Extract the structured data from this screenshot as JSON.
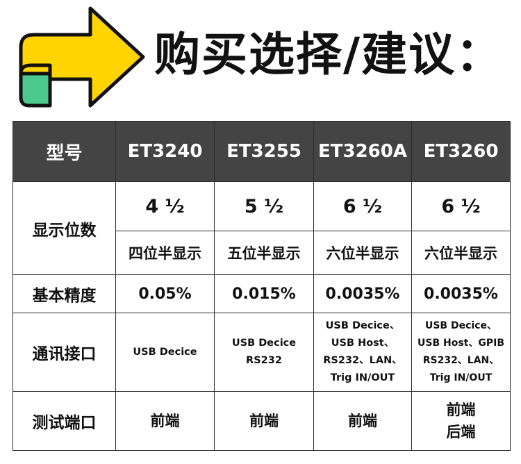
{
  "header": {
    "title": "购买选择/建议："
  },
  "icons": {
    "arrow": "right-arrow-icon"
  },
  "colors": {
    "arrow_fill": "#FFD400",
    "arrow_tab": "#4CC98E",
    "header_bg": "#444444"
  },
  "table": {
    "columns": [
      "型号",
      "ET3240",
      "ET3255",
      "ET3260A",
      "ET3260"
    ],
    "rows": {
      "display_digits": {
        "label": "显示位数",
        "values": [
          "4 ½",
          "5 ½",
          "6 ½",
          "6 ½"
        ],
        "descriptions": [
          "四位半显示",
          "五位半显示",
          "六位半显示",
          "六位半显示"
        ]
      },
      "basic_accuracy": {
        "label": "基本精度",
        "values": [
          "0.05%",
          "0.015%",
          "0.0035%",
          "0.0035%"
        ]
      },
      "comm_interface": {
        "label": "通讯接口",
        "values": [
          [
            "USB Decice"
          ],
          [
            "USB Decice",
            "RS232"
          ],
          [
            "USB Decice、",
            "USB Host、",
            "RS232、LAN、",
            "Trig IN/OUT"
          ],
          [
            "USB Decice、",
            "USB Host、GPIB",
            "RS232、LAN、",
            "Trig IN/OUT"
          ]
        ]
      },
      "test_port": {
        "label": "测试端口",
        "values": [
          [
            "前端"
          ],
          [
            "前端"
          ],
          [
            "前端"
          ],
          [
            "前端",
            "后端"
          ]
        ]
      }
    }
  }
}
